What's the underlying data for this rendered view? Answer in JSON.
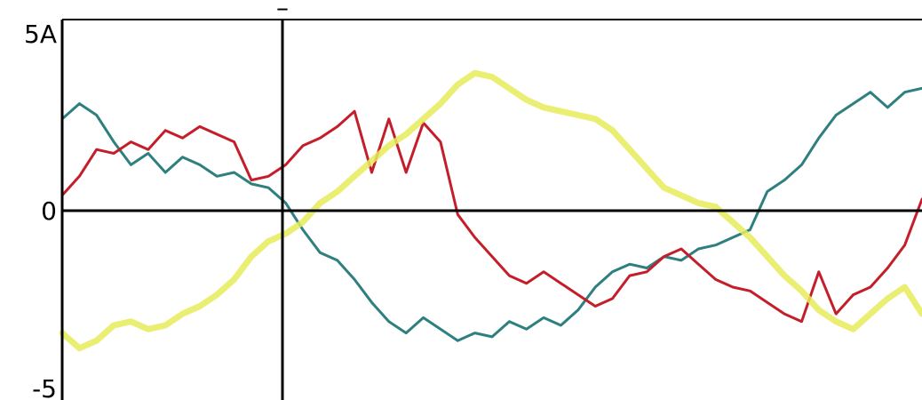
{
  "chart_data": {
    "type": "line",
    "grid": false,
    "legend": "none",
    "ylim": [
      -5,
      5
    ],
    "y_ticks": [
      {
        "value": 5,
        "label": "5A"
      },
      {
        "value": 0,
        "label": "0"
      },
      {
        "value": -5,
        "label": "-5"
      }
    ],
    "marker_label": "–",
    "colors": {
      "teal": "#2e7f7f",
      "red": "#c41e2a",
      "yellow": "#e6ec5a"
    },
    "series": [
      {
        "color": "teal",
        "x": [
          0,
          1,
          2,
          3,
          4,
          5,
          6,
          7,
          8,
          9,
          10,
          11,
          12,
          13,
          14,
          15,
          16,
          17,
          18,
          19,
          20,
          21,
          22,
          23,
          24,
          25,
          26,
          27,
          28,
          29,
          30,
          31,
          32,
          33,
          34,
          35,
          36,
          37,
          38,
          39,
          40,
          41,
          42,
          43,
          44,
          45,
          46,
          47,
          48,
          49,
          50
        ],
        "y": [
          2.4,
          2.8,
          2.5,
          1.8,
          1.2,
          1.5,
          1.0,
          1.4,
          1.2,
          0.9,
          1.0,
          0.7,
          0.6,
          0.2,
          -0.5,
          -1.1,
          -1.3,
          -1.8,
          -2.4,
          -2.9,
          -3.2,
          -2.8,
          -3.1,
          -3.4,
          -3.2,
          -3.3,
          -2.9,
          -3.1,
          -2.8,
          -3.0,
          -2.6,
          -2.0,
          -1.6,
          -1.4,
          -1.5,
          -1.2,
          -1.3,
          -1.0,
          -0.9,
          -0.7,
          -0.5,
          0.5,
          0.8,
          1.2,
          1.9,
          2.5,
          2.8,
          3.1,
          2.7,
          3.1,
          3.2
        ]
      },
      {
        "color": "red",
        "x": [
          0,
          1,
          2,
          3,
          4,
          5,
          6,
          7,
          8,
          9,
          10,
          11,
          12,
          13,
          14,
          15,
          16,
          17,
          18,
          19,
          20,
          21,
          22,
          23,
          24,
          25,
          26,
          27,
          28,
          29,
          30,
          31,
          32,
          33,
          34,
          35,
          36,
          37,
          38,
          39,
          40,
          41,
          42,
          43,
          44,
          45,
          46,
          47,
          48,
          49,
          50
        ],
        "y": [
          0.4,
          0.9,
          1.6,
          1.5,
          1.8,
          1.6,
          2.1,
          1.9,
          2.2,
          2.0,
          1.8,
          0.8,
          0.9,
          1.2,
          1.7,
          1.9,
          2.2,
          2.6,
          1.0,
          2.4,
          1.0,
          2.3,
          1.8,
          -0.1,
          -0.7,
          -1.2,
          -1.7,
          -1.9,
          -1.6,
          -1.9,
          -2.2,
          -2.5,
          -2.3,
          -1.7,
          -1.6,
          -1.2,
          -1.0,
          -1.4,
          -1.8,
          -2.0,
          -2.1,
          -2.4,
          -2.7,
          -2.9,
          -1.6,
          -2.7,
          -2.2,
          -2.0,
          -1.5,
          -0.9,
          0.3
        ]
      },
      {
        "color": "yellow",
        "x": [
          0,
          1,
          2,
          3,
          4,
          5,
          6,
          7,
          8,
          9,
          10,
          11,
          12,
          13,
          14,
          15,
          16,
          17,
          18,
          19,
          20,
          21,
          22,
          23,
          24,
          25,
          26,
          27,
          28,
          29,
          30,
          31,
          32,
          33,
          34,
          35,
          36,
          37,
          38,
          39,
          40,
          41,
          42,
          43,
          44,
          45,
          46,
          47,
          48,
          49,
          50
        ],
        "y": [
          -3.2,
          -3.6,
          -3.4,
          -3.0,
          -2.9,
          -3.1,
          -3.0,
          -2.7,
          -2.5,
          -2.2,
          -1.8,
          -1.2,
          -0.8,
          -0.6,
          -0.3,
          0.2,
          0.5,
          0.9,
          1.3,
          1.7,
          2.0,
          2.4,
          2.8,
          3.3,
          3.6,
          3.5,
          3.2,
          2.9,
          2.7,
          2.6,
          2.5,
          2.4,
          2.1,
          1.6,
          1.1,
          0.6,
          0.4,
          0.2,
          0.1,
          -0.3,
          -0.7,
          -1.2,
          -1.7,
          -2.1,
          -2.6,
          -2.9,
          -3.1,
          -2.7,
          -2.3,
          -2.0,
          -2.7
        ]
      }
    ]
  }
}
